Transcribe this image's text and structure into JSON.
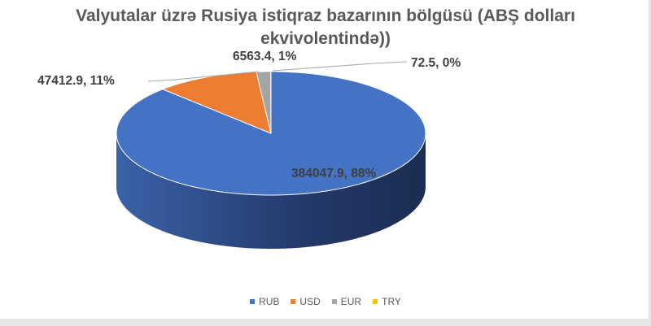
{
  "chart_data": {
    "type": "pie",
    "style": "3d",
    "title_line1": "Valyutalar üzrə Rusiya istiqraz bazarının bölgüsü  (ABŞ dolları",
    "title_line2": "ekvivolentində))",
    "categories": [
      "RUB",
      "USD",
      "EUR",
      "TRY"
    ],
    "values": [
      384047.9,
      47412.9,
      6563.4,
      72.5
    ],
    "data_labels": [
      "384047.9, 88%",
      "47412.9, 11%",
      "6563.4, 1%",
      "72.5, 0%"
    ],
    "colors": [
      "#4472c4",
      "#ed7d31",
      "#a5a5a5",
      "#ffc000"
    ],
    "side_colors": [
      "#2c4a82",
      "#a3561f",
      "#6e6e6e",
      "#b38600"
    ],
    "legend_position": "bottom"
  }
}
